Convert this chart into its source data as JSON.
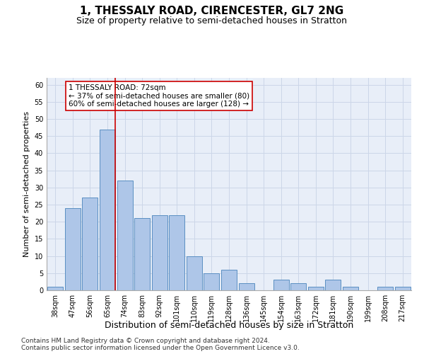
{
  "title": "1, THESSALY ROAD, CIRENCESTER, GL7 2NG",
  "subtitle": "Size of property relative to semi-detached houses in Stratton",
  "xlabel": "Distribution of semi-detached houses by size in Stratton",
  "ylabel": "Number of semi-detached properties",
  "categories": [
    "38sqm",
    "47sqm",
    "56sqm",
    "65sqm",
    "74sqm",
    "83sqm",
    "92sqm",
    "101sqm",
    "110sqm",
    "119sqm",
    "128sqm",
    "136sqm",
    "145sqm",
    "154sqm",
    "163sqm",
    "172sqm",
    "181sqm",
    "190sqm",
    "199sqm",
    "208sqm",
    "217sqm"
  ],
  "values": [
    1,
    24,
    27,
    47,
    32,
    21,
    22,
    22,
    10,
    5,
    6,
    2,
    0,
    3,
    2,
    1,
    3,
    1,
    0,
    1,
    1
  ],
  "bar_color": "#aec6e8",
  "bar_edge_color": "#5a8fc2",
  "red_line_x": 3.45,
  "red_line_label": "1 THESSALY ROAD: 72sqm",
  "annotation_smaller": "← 37% of semi-detached houses are smaller (80)",
  "annotation_larger": "60% of semi-detached houses are larger (128) →",
  "annotation_box_color": "#ffffff",
  "annotation_box_edge_color": "#cc0000",
  "grid_color": "#ccd6e8",
  "background_color": "#e8eef8",
  "ylim": [
    0,
    62
  ],
  "yticks": [
    0,
    5,
    10,
    15,
    20,
    25,
    30,
    35,
    40,
    45,
    50,
    55,
    60
  ],
  "footer_line1": "Contains HM Land Registry data © Crown copyright and database right 2024.",
  "footer_line2": "Contains public sector information licensed under the Open Government Licence v3.0.",
  "title_fontsize": 11,
  "subtitle_fontsize": 9,
  "xlabel_fontsize": 9,
  "ylabel_fontsize": 8,
  "tick_fontsize": 7,
  "annotation_fontsize": 7.5,
  "footer_fontsize": 6.5
}
